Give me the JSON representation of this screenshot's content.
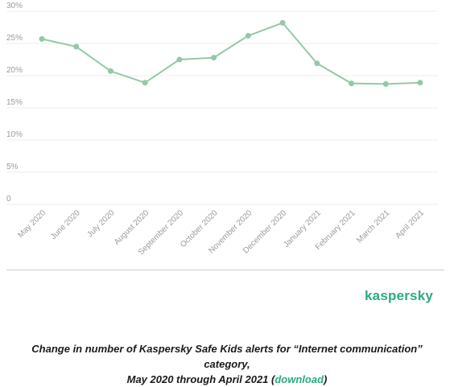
{
  "brand": {
    "logo_text": "kaspersky",
    "accent_color": "#2bab7d",
    "line_color": "#93c9a6"
  },
  "caption": {
    "line1": "Change in number of Kaspersky Safe Kids alerts for “Internet communication” category,",
    "line2_prefix": "May 2020 through April 2021 (",
    "link_label": "download",
    "line2_suffix": ")"
  },
  "chart_data": {
    "type": "line",
    "title": "",
    "xlabel": "",
    "ylabel": "",
    "categories": [
      "May 2020",
      "June 2020",
      "July 2020",
      "August 2020",
      "September 2020",
      "October 2020",
      "November 2020",
      "December 2020",
      "January 2021",
      "February 2021",
      "March 2021",
      "April 2021"
    ],
    "series": [
      {
        "values": [
          25.7,
          24.5,
          20.7,
          18.9,
          22.5,
          22.8,
          26.2,
          28.2,
          21.9,
          18.8,
          18.7,
          18.9
        ]
      }
    ],
    "ylim": [
      0,
      30
    ],
    "yticks": [
      0,
      5,
      10,
      15,
      20,
      25,
      30
    ],
    "ytick_labels": [
      "0",
      "5%",
      "10%",
      "15%",
      "20%",
      "25%",
      "30%"
    ],
    "grid": true,
    "legend": "none"
  }
}
